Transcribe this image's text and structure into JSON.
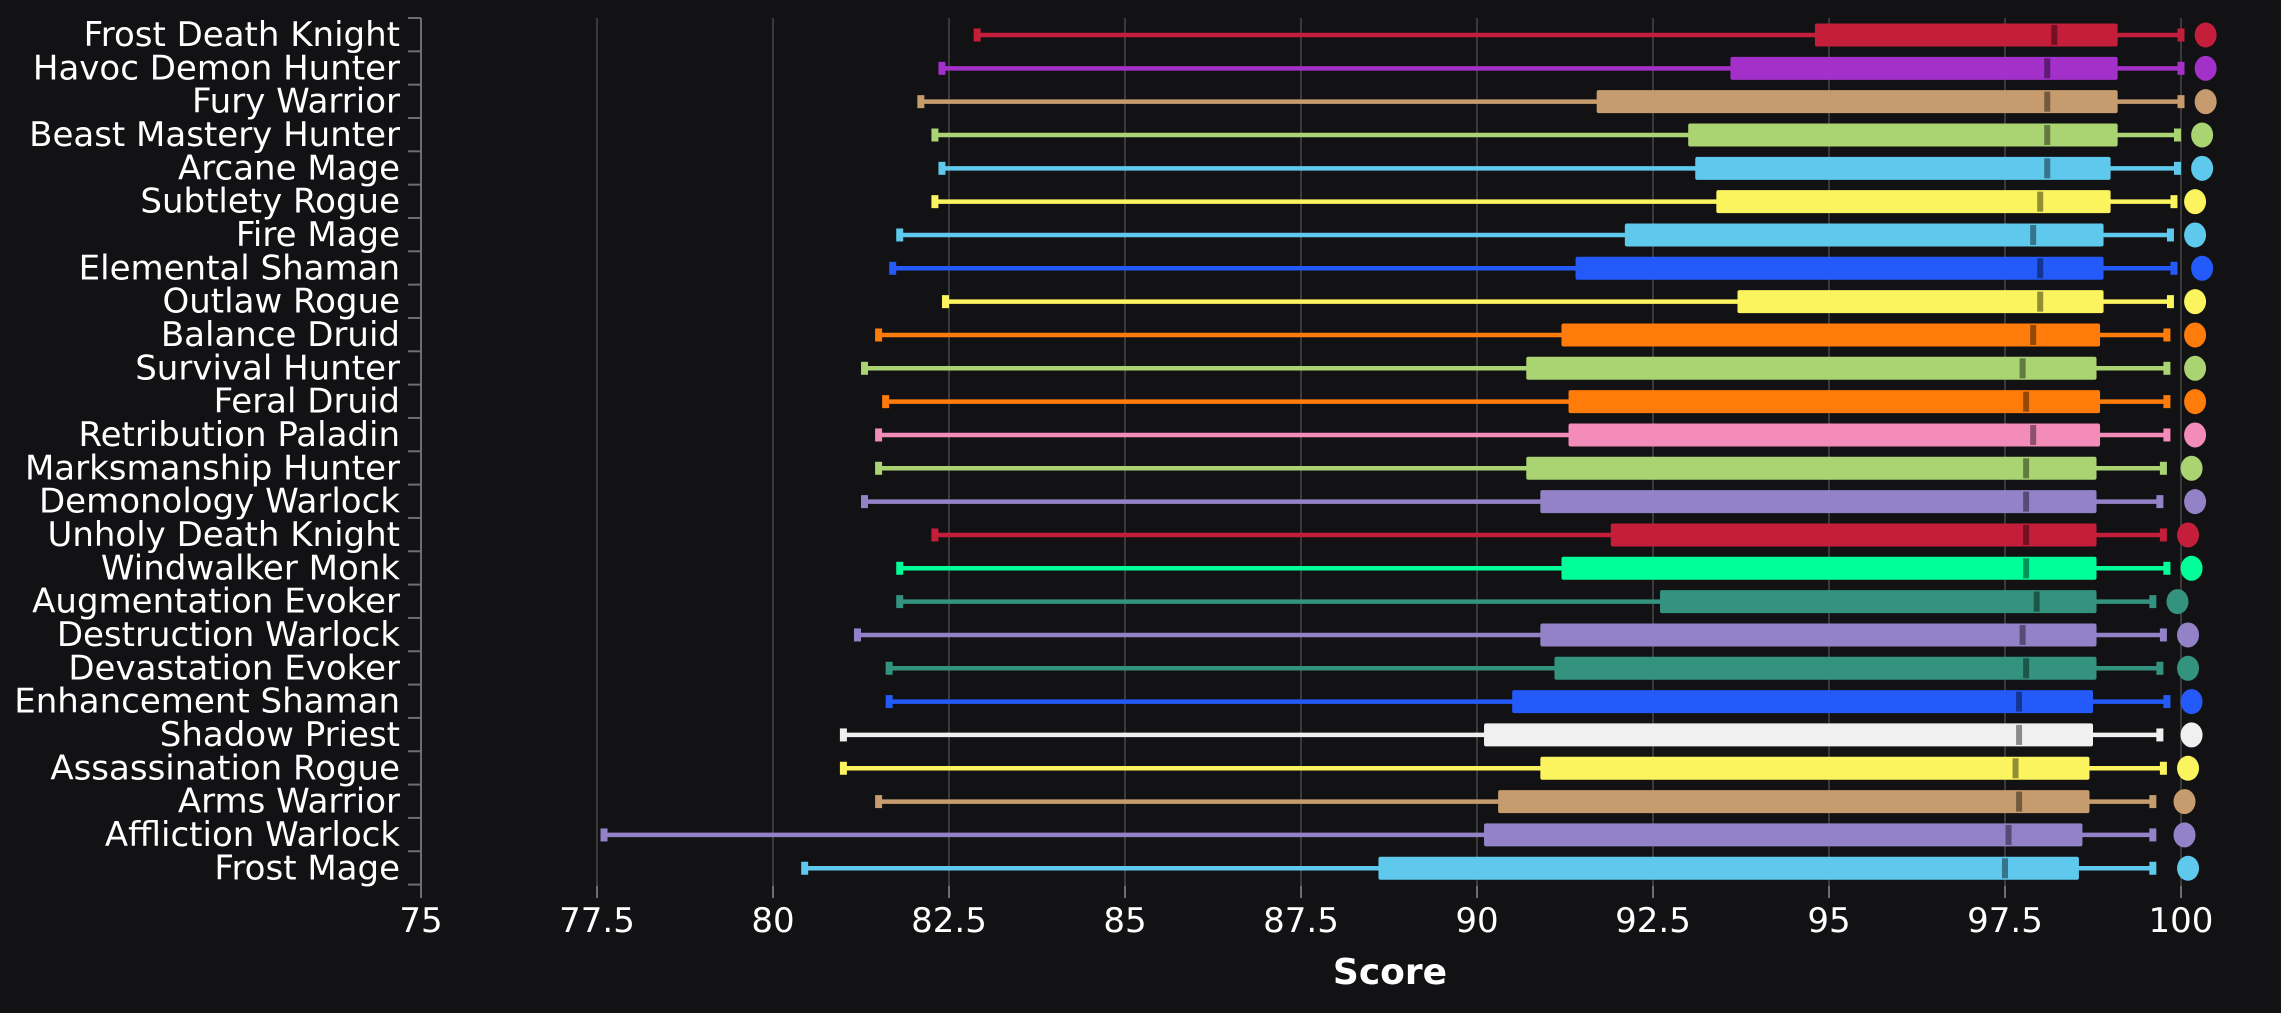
{
  "page": {
    "background_color": "#121214",
    "text_color": "#ffffff",
    "gridline_color": "#3a3a3c",
    "axis_color": "#6e6e72",
    "median_overlay_color": "rgba(0,0,0,0.42)"
  },
  "chart_data": {
    "type": "boxplot",
    "orientation": "horizontal",
    "title": "",
    "xlabel": "Score",
    "ylabel": "",
    "x_range": [
      75,
      100
    ],
    "x_ticks": [
      75,
      77.5,
      80,
      82.5,
      85,
      87.5,
      90,
      92.5,
      95,
      97.5,
      100
    ],
    "grid": "vertical gridlines on",
    "legend": "none",
    "note": "Each row: whisker low, Q1, median, Q3, whisker high, plus a large round marker (max point) just right of the whisker.",
    "series": [
      {
        "name": "Frost Death Knight",
        "color": "#C41E3A",
        "low": 82.9,
        "q1": 94.8,
        "median": 98.2,
        "q3": 99.1,
        "high": 100.0,
        "max_point": 100.35
      },
      {
        "name": "Havoc Demon Hunter",
        "color": "#A330C9",
        "low": 82.4,
        "q1": 93.6,
        "median": 98.1,
        "q3": 99.1,
        "high": 100.0,
        "max_point": 100.35
      },
      {
        "name": "Fury Warrior",
        "color": "#C69B6D",
        "low": 82.1,
        "q1": 91.7,
        "median": 98.1,
        "q3": 99.1,
        "high": 100.0,
        "max_point": 100.35
      },
      {
        "name": "Beast Mastery Hunter",
        "color": "#AAD372",
        "low": 82.3,
        "q1": 93.0,
        "median": 98.1,
        "q3": 99.1,
        "high": 99.95,
        "max_point": 100.3
      },
      {
        "name": "Arcane Mage",
        "color": "#5EC9EC",
        "low": 82.4,
        "q1": 93.1,
        "median": 98.1,
        "q3": 99.0,
        "high": 99.95,
        "max_point": 100.3
      },
      {
        "name": "Subtlety Rogue",
        "color": "#FCF45E",
        "low": 82.3,
        "q1": 93.4,
        "median": 98.0,
        "q3": 99.0,
        "high": 99.9,
        "max_point": 100.2
      },
      {
        "name": "Fire Mage",
        "color": "#5EC9EC",
        "low": 81.8,
        "q1": 92.1,
        "median": 97.9,
        "q3": 98.9,
        "high": 99.85,
        "max_point": 100.2
      },
      {
        "name": "Elemental Shaman",
        "color": "#255AFA",
        "low": 81.7,
        "q1": 91.4,
        "median": 98.0,
        "q3": 98.9,
        "high": 99.9,
        "max_point": 100.3
      },
      {
        "name": "Outlaw Rogue",
        "color": "#FCF45E",
        "low": 82.45,
        "q1": 93.7,
        "median": 98.0,
        "q3": 98.9,
        "high": 99.85,
        "max_point": 100.2
      },
      {
        "name": "Balance Druid",
        "color": "#FF7C0A",
        "low": 81.5,
        "q1": 91.2,
        "median": 97.9,
        "q3": 98.85,
        "high": 99.8,
        "max_point": 100.2
      },
      {
        "name": "Survival Hunter",
        "color": "#AAD372",
        "low": 81.3,
        "q1": 90.7,
        "median": 97.75,
        "q3": 98.8,
        "high": 99.8,
        "max_point": 100.2
      },
      {
        "name": "Feral Druid",
        "color": "#FF7C0A",
        "low": 81.6,
        "q1": 91.3,
        "median": 97.8,
        "q3": 98.85,
        "high": 99.8,
        "max_point": 100.2
      },
      {
        "name": "Retribution Paladin",
        "color": "#F48CBA",
        "low": 81.5,
        "q1": 91.3,
        "median": 97.9,
        "q3": 98.85,
        "high": 99.8,
        "max_point": 100.2
      },
      {
        "name": "Marksmanship Hunter",
        "color": "#AAD372",
        "low": 81.5,
        "q1": 90.7,
        "median": 97.8,
        "q3": 98.8,
        "high": 99.75,
        "max_point": 100.15
      },
      {
        "name": "Demonology Warlock",
        "color": "#9482C9",
        "low": 81.3,
        "q1": 90.9,
        "median": 97.8,
        "q3": 98.8,
        "high": 99.7,
        "max_point": 100.2
      },
      {
        "name": "Unholy Death Knight",
        "color": "#C41E3A",
        "low": 82.3,
        "q1": 91.9,
        "median": 97.8,
        "q3": 98.8,
        "high": 99.75,
        "max_point": 100.1
      },
      {
        "name": "Windwalker Monk",
        "color": "#00FF98",
        "low": 81.8,
        "q1": 91.2,
        "median": 97.8,
        "q3": 98.8,
        "high": 99.8,
        "max_point": 100.15
      },
      {
        "name": "Augmentation Evoker",
        "color": "#33937F",
        "low": 81.8,
        "q1": 92.6,
        "median": 97.95,
        "q3": 98.8,
        "high": 99.6,
        "max_point": 99.95
      },
      {
        "name": "Destruction Warlock",
        "color": "#9482C9",
        "low": 81.2,
        "q1": 90.9,
        "median": 97.75,
        "q3": 98.8,
        "high": 99.75,
        "max_point": 100.1
      },
      {
        "name": "Devastation Evoker",
        "color": "#33937F",
        "low": 81.65,
        "q1": 91.1,
        "median": 97.8,
        "q3": 98.8,
        "high": 99.7,
        "max_point": 100.1
      },
      {
        "name": "Enhancement Shaman",
        "color": "#255AFA",
        "low": 81.65,
        "q1": 90.5,
        "median": 97.7,
        "q3": 98.75,
        "high": 99.8,
        "max_point": 100.15
      },
      {
        "name": "Shadow Priest",
        "color": "#F0F0F0",
        "low": 81.0,
        "q1": 90.1,
        "median": 97.7,
        "q3": 98.75,
        "high": 99.7,
        "max_point": 100.15
      },
      {
        "name": "Assassination Rogue",
        "color": "#FCF45E",
        "low": 81.0,
        "q1": 90.9,
        "median": 97.65,
        "q3": 98.7,
        "high": 99.75,
        "max_point": 100.1
      },
      {
        "name": "Arms Warrior",
        "color": "#C69B6D",
        "low": 81.5,
        "q1": 90.3,
        "median": 97.7,
        "q3": 98.7,
        "high": 99.6,
        "max_point": 100.05
      },
      {
        "name": "Affliction Warlock",
        "color": "#9482C9",
        "low": 77.6,
        "q1": 90.1,
        "median": 97.55,
        "q3": 98.6,
        "high": 99.6,
        "max_point": 100.05
      },
      {
        "name": "Frost Mage",
        "color": "#5EC9EC",
        "low": 80.45,
        "q1": 88.6,
        "median": 97.5,
        "q3": 98.55,
        "high": 99.6,
        "max_point": 100.1
      }
    ]
  }
}
